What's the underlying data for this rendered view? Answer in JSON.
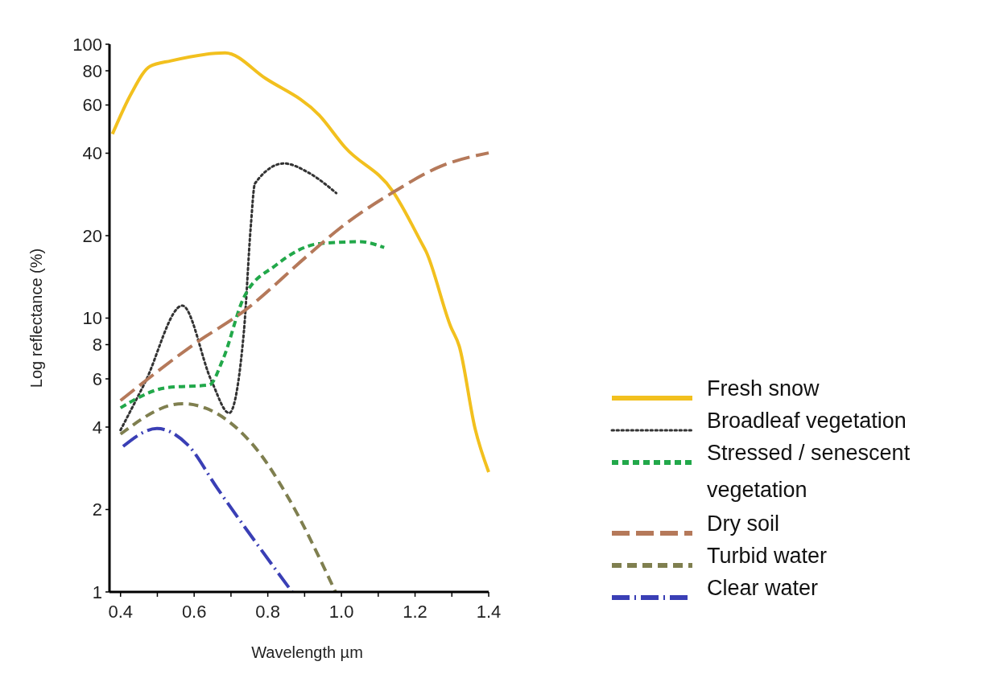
{
  "chart_data": {
    "type": "line",
    "xlabel": "Wavelength µm",
    "ylabel": "Log reflectance (%)",
    "log": "y",
    "legend": "right",
    "grid": false,
    "xlim": [
      0.37,
      1.4
    ],
    "xticks": [
      0.4,
      {
        "value": 0.5,
        "label": null
      },
      0.6,
      {
        "value": 0.7,
        "label": null
      },
      0.8,
      {
        "value": 0.9,
        "label": null
      },
      {
        "value": 1,
        "label": "1.0"
      },
      {
        "value": 1.1,
        "label": null
      },
      1.2,
      {
        "value": 1.3,
        "label": null
      },
      1.4
    ],
    "ylim": [
      1,
      100
    ],
    "yticks": [
      1,
      2,
      4,
      6,
      8,
      10,
      20,
      40,
      60,
      80,
      100
    ],
    "series": [
      {
        "name": "Fresh snow",
        "color": "#f2c01e",
        "line_style": "solid",
        "x": [
          0.378,
          0.429,
          0.48,
          0.537,
          0.684,
          0.794,
          0.94,
          1.01,
          1.14,
          1.216,
          1.23,
          1.297,
          1.32,
          1.363,
          1.4
        ],
        "values": [
          47,
          66,
          83,
          87,
          93,
          75,
          55,
          42,
          29,
          19,
          17.5,
          9.3,
          7.9,
          3.95,
          2.74
        ]
      },
      {
        "name": "Broadleaf vegetation",
        "color": "#333333",
        "line_style": "dotted",
        "x": [
          0.4,
          0.466,
          0.568,
          0.647,
          0.695,
          0.735,
          0.754,
          0.765,
          0.844,
          0.91,
          0.986
        ],
        "values": [
          3.9,
          5.8,
          11.1,
          5.9,
          4.5,
          8.9,
          21.8,
          31,
          36.7,
          34,
          28.6
        ]
      },
      {
        "name": "Stressed / senescent vegetation",
        "color": "#22a84a",
        "line_style": "dashed",
        "x": [
          0.4,
          0.525,
          0.641,
          0.678,
          0.735,
          0.822,
          0.94,
          1.05,
          1.116
        ],
        "values": [
          4.7,
          5.57,
          5.7,
          7.06,
          11.9,
          15.6,
          18.7,
          19,
          18.1
        ]
      },
      {
        "name": "Dry soil",
        "color": "#b5795a",
        "line_style": "dashed",
        "x": [
          0.4,
          0.604,
          0.735,
          0.91,
          0.998,
          1.144,
          1.269,
          1.4
        ],
        "values": [
          5,
          8.1,
          10.6,
          17,
          21.4,
          29,
          35.8,
          40.1
        ]
      },
      {
        "name": "Turbid water",
        "color": "#7f7f4f",
        "line_style": "dashed",
        "x": [
          0.4,
          0.568,
          0.772,
          0.853,
          0.984
        ],
        "values": [
          3.77,
          4.87,
          3.29,
          2.24,
          1.0
        ]
      },
      {
        "name": "Clear water",
        "color": "#3a3fb5",
        "line_style": "dashed",
        "x": [
          0.407,
          0.499,
          0.582,
          0.663,
          0.866
        ],
        "values": [
          3.4,
          3.95,
          3.45,
          2.39,
          1.0
        ]
      }
    ]
  }
}
